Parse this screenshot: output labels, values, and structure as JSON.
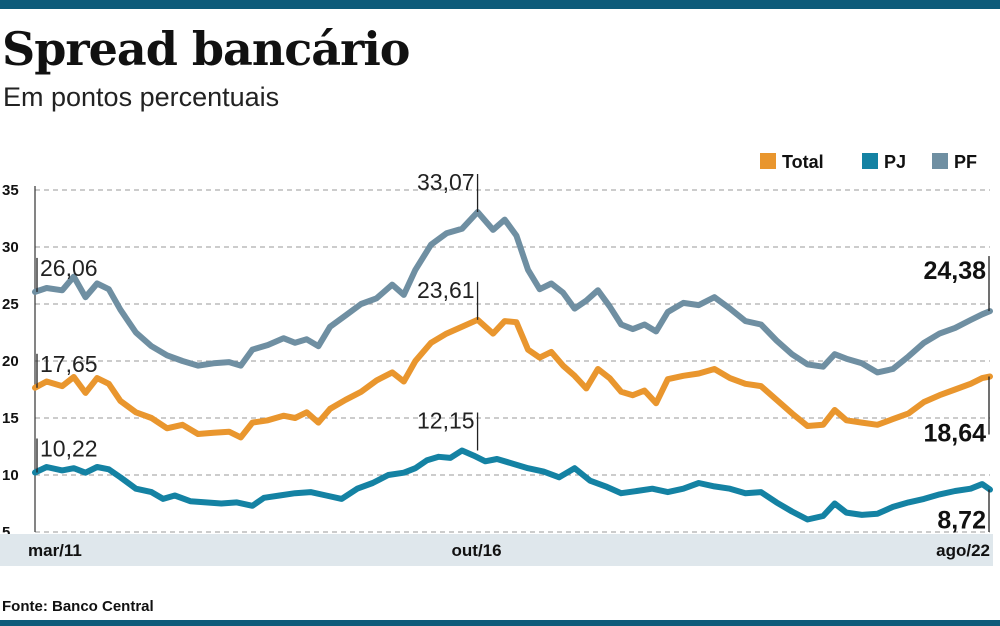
{
  "header": {
    "title": "Spread bancário",
    "subtitle": "Em pontos percentuais"
  },
  "footer": {
    "source": "Fonte: Banco Central"
  },
  "colors": {
    "brand": "#0e5b7a",
    "total": "#e9962e",
    "pj": "#1482a3",
    "pf": "#6f8fa2",
    "axis_band": "#dfe7ec"
  },
  "chart_data": {
    "type": "line",
    "title": "Spread bancário",
    "subtitle": "Em pontos percentuais",
    "xlabel": "",
    "ylabel": "",
    "ylim": [
      5,
      35
    ],
    "yticks": [
      "5",
      "10",
      "15",
      "20",
      "25",
      "30",
      "35"
    ],
    "grid": true,
    "legend_position": "top-right",
    "x_labels": [
      {
        "label": "mar/11",
        "index": 0
      },
      {
        "label": "out/16",
        "index": 67
      },
      {
        "label": "ago/22",
        "index": 137
      }
    ],
    "x_count": 138,
    "series": [
      {
        "name": "Total",
        "color": "#e9962e",
        "points": [
          [
            0,
            17.65
          ],
          [
            3,
            18.2
          ],
          [
            7,
            17.8
          ],
          [
            10,
            18.6
          ],
          [
            13,
            17.2
          ],
          [
            16,
            18.5
          ],
          [
            19,
            18.0
          ],
          [
            22,
            16.5
          ],
          [
            26,
            15.5
          ],
          [
            30,
            15.0
          ],
          [
            34,
            14.1
          ],
          [
            38,
            14.4
          ],
          [
            42,
            13.6
          ],
          [
            46,
            13.7
          ],
          [
            50,
            13.8
          ],
          [
            53,
            13.3
          ],
          [
            56,
            14.6
          ],
          [
            60,
            14.8
          ],
          [
            64,
            15.2
          ],
          [
            67,
            15.0
          ],
          [
            70,
            15.5
          ],
          [
            73,
            14.6
          ],
          [
            76,
            15.8
          ],
          [
            80,
            16.6
          ],
          [
            84,
            17.3
          ],
          [
            88,
            18.3
          ],
          [
            92,
            19.0
          ],
          [
            95,
            18.2
          ],
          [
            98,
            20.0
          ],
          [
            102,
            21.6
          ],
          [
            106,
            22.4
          ],
          [
            110,
            23.0
          ],
          [
            114,
            23.61
          ],
          [
            118,
            22.4
          ],
          [
            121,
            23.5
          ],
          [
            124,
            23.4
          ],
          [
            127,
            21.0
          ],
          [
            130,
            20.3
          ],
          [
            133,
            20.8
          ],
          [
            136,
            19.6
          ],
          [
            139,
            18.7
          ],
          [
            142,
            17.6
          ],
          [
            145,
            19.3
          ],
          [
            148,
            18.5
          ],
          [
            151,
            17.3
          ],
          [
            154,
            17.0
          ],
          [
            157,
            17.4
          ],
          [
            160,
            16.3
          ],
          [
            163,
            18.4
          ],
          [
            167,
            18.7
          ],
          [
            171,
            18.9
          ],
          [
            175,
            19.3
          ],
          [
            179,
            18.5
          ],
          [
            183,
            18.0
          ],
          [
            187,
            17.8
          ],
          [
            191,
            16.6
          ],
          [
            195,
            15.4
          ],
          [
            199,
            14.3
          ],
          [
            203,
            14.4
          ],
          [
            206,
            15.7
          ],
          [
            209,
            14.8
          ],
          [
            213,
            14.6
          ],
          [
            217,
            14.4
          ],
          [
            221,
            14.9
          ],
          [
            225,
            15.4
          ],
          [
            229,
            16.4
          ],
          [
            233,
            17.0
          ],
          [
            237,
            17.5
          ],
          [
            241,
            18.0
          ],
          [
            244,
            18.5
          ],
          [
            246,
            18.64
          ]
        ]
      },
      {
        "name": "PJ",
        "color": "#1482a3",
        "points": [
          [
            0,
            10.22
          ],
          [
            3,
            10.7
          ],
          [
            7,
            10.4
          ],
          [
            10,
            10.6
          ],
          [
            13,
            10.2
          ],
          [
            16,
            10.7
          ],
          [
            19,
            10.5
          ],
          [
            22,
            9.8
          ],
          [
            26,
            8.8
          ],
          [
            30,
            8.5
          ],
          [
            33,
            7.9
          ],
          [
            36,
            8.2
          ],
          [
            40,
            7.7
          ],
          [
            44,
            7.6
          ],
          [
            48,
            7.5
          ],
          [
            52,
            7.6
          ],
          [
            56,
            7.3
          ],
          [
            59,
            8.0
          ],
          [
            63,
            8.2
          ],
          [
            67,
            8.4
          ],
          [
            71,
            8.5
          ],
          [
            75,
            8.2
          ],
          [
            79,
            7.9
          ],
          [
            83,
            8.8
          ],
          [
            87,
            9.3
          ],
          [
            91,
            10.0
          ],
          [
            95,
            10.2
          ],
          [
            98,
            10.6
          ],
          [
            101,
            11.3
          ],
          [
            104,
            11.6
          ],
          [
            107,
            11.5
          ],
          [
            110,
            12.15
          ],
          [
            113,
            11.7
          ],
          [
            116,
            11.2
          ],
          [
            119,
            11.4
          ],
          [
            123,
            11.0
          ],
          [
            127,
            10.6
          ],
          [
            131,
            10.3
          ],
          [
            135,
            9.8
          ],
          [
            139,
            10.6
          ],
          [
            143,
            9.5
          ],
          [
            147,
            9.0
          ],
          [
            151,
            8.4
          ],
          [
            155,
            8.6
          ],
          [
            159,
            8.8
          ],
          [
            163,
            8.5
          ],
          [
            167,
            8.8
          ],
          [
            171,
            9.3
          ],
          [
            175,
            9.0
          ],
          [
            179,
            8.8
          ],
          [
            183,
            8.4
          ],
          [
            187,
            8.5
          ],
          [
            191,
            7.6
          ],
          [
            195,
            6.8
          ],
          [
            199,
            6.1
          ],
          [
            203,
            6.4
          ],
          [
            206,
            7.5
          ],
          [
            209,
            6.7
          ],
          [
            213,
            6.5
          ],
          [
            217,
            6.6
          ],
          [
            221,
            7.2
          ],
          [
            225,
            7.6
          ],
          [
            229,
            7.9
          ],
          [
            233,
            8.3
          ],
          [
            237,
            8.6
          ],
          [
            241,
            8.8
          ],
          [
            244,
            9.2
          ],
          [
            246,
            8.72
          ]
        ]
      },
      {
        "name": "PF",
        "color": "#6f8fa2",
        "points": [
          [
            0,
            26.06
          ],
          [
            3,
            26.4
          ],
          [
            7,
            26.2
          ],
          [
            10,
            27.4
          ],
          [
            13,
            25.6
          ],
          [
            16,
            26.8
          ],
          [
            19,
            26.3
          ],
          [
            22,
            24.5
          ],
          [
            26,
            22.5
          ],
          [
            30,
            21.3
          ],
          [
            34,
            20.5
          ],
          [
            38,
            20.0
          ],
          [
            42,
            19.6
          ],
          [
            46,
            19.8
          ],
          [
            50,
            19.9
          ],
          [
            53,
            19.6
          ],
          [
            56,
            21.0
          ],
          [
            60,
            21.4
          ],
          [
            64,
            22.0
          ],
          [
            67,
            21.6
          ],
          [
            70,
            21.9
          ],
          [
            73,
            21.3
          ],
          [
            76,
            23.0
          ],
          [
            80,
            24.0
          ],
          [
            84,
            25.0
          ],
          [
            88,
            25.5
          ],
          [
            92,
            26.7
          ],
          [
            95,
            25.8
          ],
          [
            98,
            28.0
          ],
          [
            102,
            30.2
          ],
          [
            106,
            31.2
          ],
          [
            110,
            31.6
          ],
          [
            114,
            33.07
          ],
          [
            118,
            31.5
          ],
          [
            121,
            32.4
          ],
          [
            124,
            31.0
          ],
          [
            127,
            28.0
          ],
          [
            130,
            26.3
          ],
          [
            133,
            26.8
          ],
          [
            136,
            26.0
          ],
          [
            139,
            24.6
          ],
          [
            142,
            25.3
          ],
          [
            145,
            26.2
          ],
          [
            148,
            24.8
          ],
          [
            151,
            23.2
          ],
          [
            154,
            22.8
          ],
          [
            157,
            23.2
          ],
          [
            160,
            22.6
          ],
          [
            163,
            24.3
          ],
          [
            167,
            25.1
          ],
          [
            171,
            24.9
          ],
          [
            175,
            25.6
          ],
          [
            179,
            24.6
          ],
          [
            183,
            23.5
          ],
          [
            187,
            23.2
          ],
          [
            191,
            21.8
          ],
          [
            195,
            20.6
          ],
          [
            199,
            19.7
          ],
          [
            203,
            19.5
          ],
          [
            206,
            20.6
          ],
          [
            209,
            20.2
          ],
          [
            213,
            19.8
          ],
          [
            217,
            19.0
          ],
          [
            221,
            19.3
          ],
          [
            225,
            20.4
          ],
          [
            229,
            21.6
          ],
          [
            233,
            22.4
          ],
          [
            237,
            22.9
          ],
          [
            241,
            23.6
          ],
          [
            244,
            24.1
          ],
          [
            246,
            24.38
          ]
        ]
      }
    ],
    "annotations": {
      "left": [
        {
          "series": "PF",
          "label": "26,06",
          "value": 26.06
        },
        {
          "series": "Total",
          "label": "17,65",
          "value": 17.65
        },
        {
          "series": "PJ",
          "label": "10,22",
          "value": 10.22
        }
      ],
      "middle": [
        {
          "series": "PF",
          "label": "33,07",
          "value": 33.07
        },
        {
          "series": "Total",
          "label": "23,61",
          "value": 23.61
        },
        {
          "series": "PJ",
          "label": "12,15",
          "value": 12.15
        }
      ],
      "right": [
        {
          "series": "PF",
          "label": "24,38",
          "value": 24.38
        },
        {
          "series": "Total",
          "label": "18,64",
          "value": 18.64
        },
        {
          "series": "PJ",
          "label": "8,72",
          "value": 8.72
        }
      ]
    }
  }
}
